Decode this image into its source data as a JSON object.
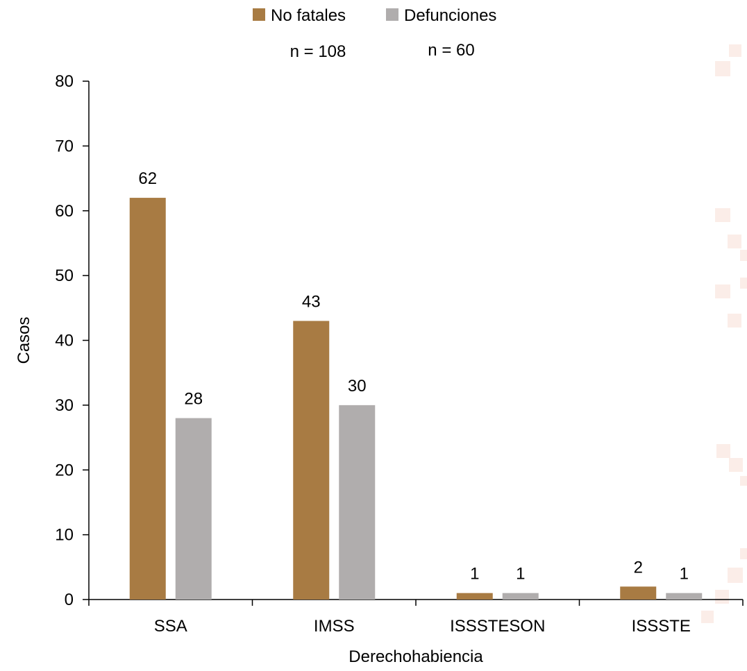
{
  "chart_data": {
    "type": "bar",
    "categories": [
      "SSA",
      "IMSS",
      "ISSSTESON",
      "ISSSTE"
    ],
    "series": [
      {
        "name": "No fatales",
        "values": [
          62,
          43,
          1,
          2
        ],
        "color": "#a87b43"
      },
      {
        "name": "Defunciones",
        "values": [
          28,
          30,
          1,
          1
        ],
        "color": "#b0adad"
      }
    ],
    "n_labels": [
      "n = 108",
      "n = 60"
    ],
    "xlabel": "Derechohabiencia",
    "ylabel": "Casos",
    "ylim": [
      0,
      80
    ],
    "yticks": [
      0,
      10,
      20,
      30,
      40,
      50,
      60,
      70,
      80
    ],
    "legend_position": "top-center",
    "grid": false
  },
  "background": {
    "decoration_color": "#f7dfd6"
  }
}
